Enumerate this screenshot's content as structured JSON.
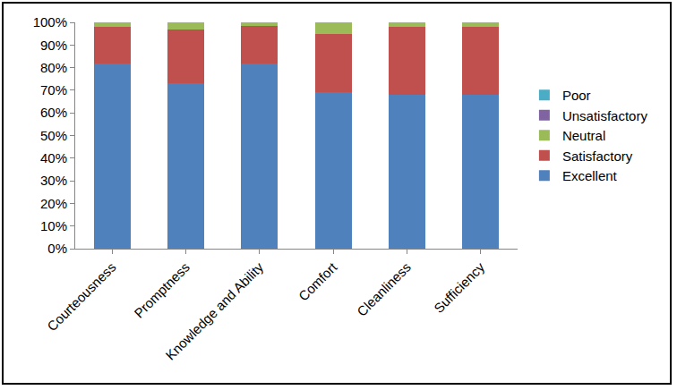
{
  "chart_data": {
    "type": "bar",
    "stacked": true,
    "legend": "right",
    "grid": false,
    "categories": [
      "Courteousness",
      "Promptness",
      "Knowledge and Ability",
      "Comfort",
      "Cleanliness",
      "Sufficiency"
    ],
    "series": [
      {
        "name": "Excellent",
        "color": "#4f81bd",
        "values": [
          82,
          73,
          82,
          69,
          68,
          68
        ]
      },
      {
        "name": "Satisfactory",
        "color": "#c0504d",
        "values": [
          16,
          24,
          16.5,
          26,
          30,
          30
        ]
      },
      {
        "name": "Neutral",
        "color": "#9bbb59",
        "values": [
          2,
          3,
          1.5,
          5,
          2,
          2
        ]
      },
      {
        "name": "Unsatisfactory",
        "color": "#8064a2",
        "values": [
          0,
          0,
          0,
          0,
          0,
          0
        ]
      },
      {
        "name": "Poor",
        "color": "#4bacc6",
        "values": [
          0,
          0,
          0,
          0,
          0,
          0
        ]
      }
    ],
    "ylim": [
      0,
      100
    ],
    "yticks": [
      {
        "value": 0,
        "label": "0%"
      },
      {
        "value": 10,
        "label": "10%"
      },
      {
        "value": 20,
        "label": "20%"
      },
      {
        "value": 30,
        "label": "30%"
      },
      {
        "value": 40,
        "label": "40%"
      },
      {
        "value": 50,
        "label": "50%"
      },
      {
        "value": 60,
        "label": "60%"
      },
      {
        "value": 70,
        "label": "70%"
      },
      {
        "value": 80,
        "label": "80%"
      },
      {
        "value": 90,
        "label": "90%"
      },
      {
        "value": 100,
        "label": "100%"
      }
    ]
  }
}
